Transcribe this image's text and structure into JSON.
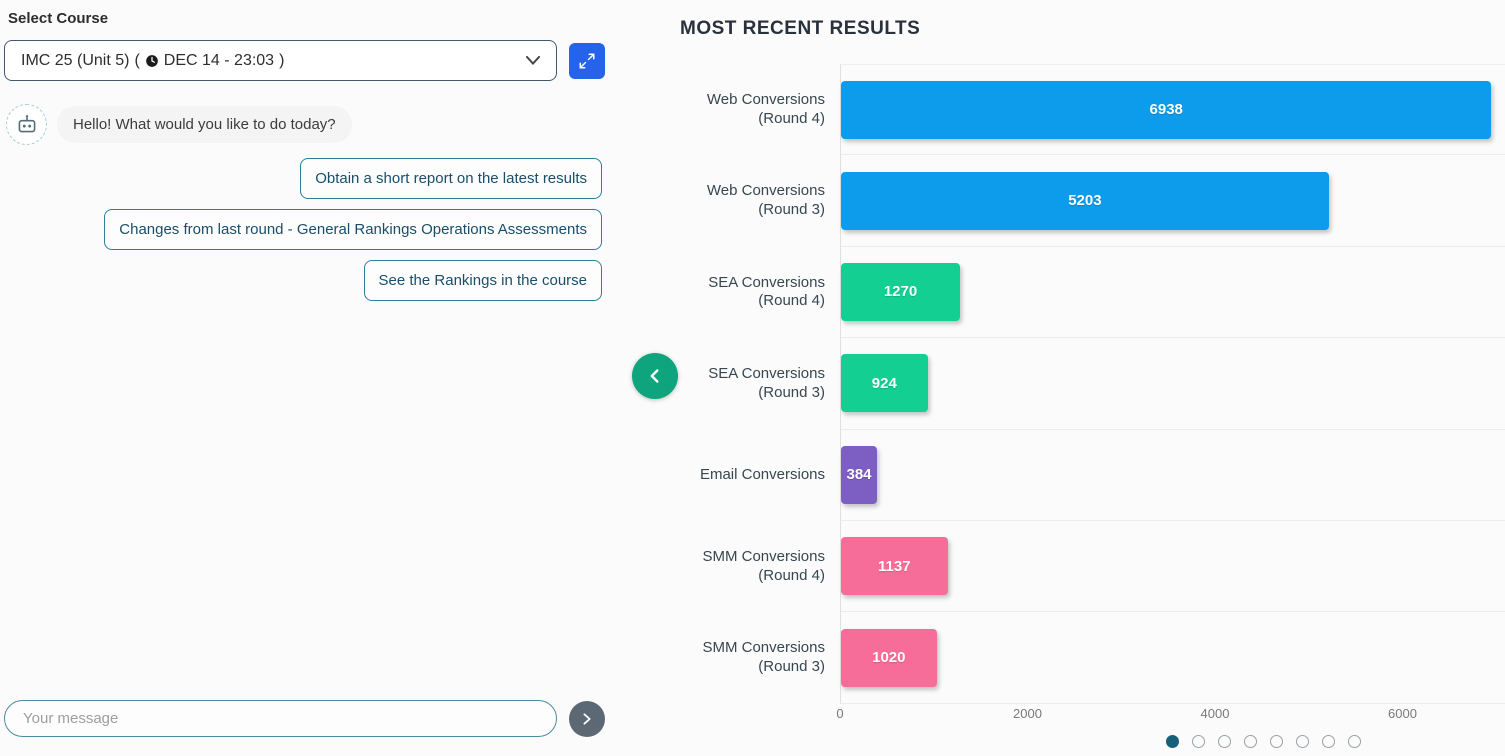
{
  "course_selector": {
    "label": "Select Course",
    "name": "IMC 25 (Unit 5)",
    "time_open": "(",
    "time": "DEC 14 - 23:03",
    "time_close": ")"
  },
  "chat": {
    "greeting": "Hello! What would you like to do today?",
    "suggestions": [
      "Obtain a short report on the latest results",
      "Changes from last round - General Rankings Operations Assessments",
      "See the Rankings in the course"
    ],
    "input_placeholder": "Your message"
  },
  "results": {
    "title": "MOST RECENT RESULTS"
  },
  "chart_data": {
    "type": "bar",
    "orientation": "horizontal",
    "title": "MOST RECENT RESULTS",
    "categories": [
      "Web Conversions (Round 4)",
      "Web Conversions (Round 3)",
      "SEA Conversions (Round 4)",
      "SEA Conversions (Round 3)",
      "Email Conversions",
      "SMM Conversions (Round 4)",
      "SMM Conversions (Round 3)"
    ],
    "values": [
      6938,
      5203,
      1270,
      924,
      384,
      1137,
      1020
    ],
    "colors": [
      "#0c9ceb",
      "#0c9ceb",
      "#13d092",
      "#13d092",
      "#7d5ec2",
      "#f76d99",
      "#f76d99"
    ],
    "xticks": [
      0,
      2000,
      4000,
      6000
    ],
    "xlim": [
      0,
      7100
    ],
    "xlabel": "",
    "ylabel": "",
    "grid": "row-separators",
    "legend": false
  },
  "pagination": {
    "count": 8,
    "active_index": 0,
    "active_color": "#16607a"
  },
  "theme": {
    "accent_blue": "#2563eb",
    "accent_teal_green": "#0ea47e",
    "send_button_gray": "#5c6873",
    "suggestion_border": "#2f7e95",
    "background": "#fbfbfb"
  },
  "icons": {
    "dropdown": "chevron-down-icon",
    "course_time": "clock-icon",
    "expand": "expand-arrows-icon",
    "avatar": "robot-icon",
    "send": "send-icon",
    "collapse": "chevron-left-icon"
  }
}
